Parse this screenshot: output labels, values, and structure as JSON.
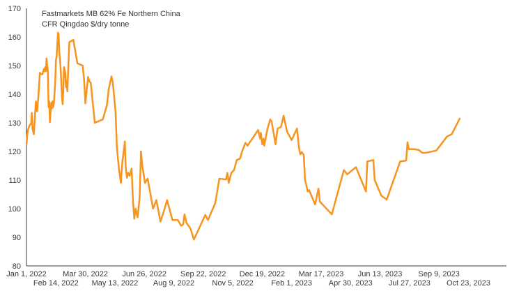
{
  "chart_data": {
    "type": "line",
    "title_lines": [
      "Fastmarkets MB 62% Fe Northern China",
      "CFR Qingdao $/dry tonne"
    ],
    "xlabel": "",
    "ylabel": "",
    "ylim": [
      80,
      170
    ],
    "y_ticks": [
      80,
      90,
      100,
      110,
      120,
      130,
      140,
      150,
      160,
      170
    ],
    "x_range": [
      "2022-01-01",
      "2023-11-30"
    ],
    "x_ticks": [
      {
        "date": "2022-01-01",
        "label": "Jan 1, 2022",
        "row": 1
      },
      {
        "date": "2022-02-14",
        "label": "Feb 14, 2022",
        "row": 2
      },
      {
        "date": "2022-03-30",
        "label": "Mar 30, 2022",
        "row": 1
      },
      {
        "date": "2022-05-13",
        "label": "May 13, 2022",
        "row": 2
      },
      {
        "date": "2022-06-26",
        "label": "Jun 26, 2022",
        "row": 1
      },
      {
        "date": "2022-08-09",
        "label": "Aug 9, 2022",
        "row": 2
      },
      {
        "date": "2022-09-22",
        "label": "Sep 22, 2022",
        "row": 1
      },
      {
        "date": "2022-11-05",
        "label": "Nov 5, 2022",
        "row": 2
      },
      {
        "date": "2022-12-19",
        "label": "Dec 19, 2022",
        "row": 1
      },
      {
        "date": "2023-02-01",
        "label": "Feb 1, 2023",
        "row": 2
      },
      {
        "date": "2023-03-17",
        "label": "Mar 17, 2023",
        "row": 1
      },
      {
        "date": "2023-04-30",
        "label": "Apr 30, 2023",
        "row": 2
      },
      {
        "date": "2023-06-13",
        "label": "Jun 13, 2023",
        "row": 1
      },
      {
        "date": "2023-07-27",
        "label": "Jul 27, 2023",
        "row": 2
      },
      {
        "date": "2023-09-09",
        "label": "Sep 9, 2023",
        "row": 1
      },
      {
        "date": "2023-10-23",
        "label": "Oct 23, 2023",
        "row": 2
      }
    ],
    "grid": false,
    "legend": "none",
    "series": [
      {
        "color": "#F7941D",
        "points": [
          [
            "2022-01-01",
            122.5
          ],
          [
            "2022-01-03",
            127.5
          ],
          [
            "2022-01-06",
            129.2
          ],
          [
            "2022-01-08",
            129.8
          ],
          [
            "2022-01-09",
            133.5
          ],
          [
            "2022-01-10",
            128.0
          ],
          [
            "2022-01-12",
            126.0
          ],
          [
            "2022-01-15",
            137.5
          ],
          [
            "2022-01-17",
            134.0
          ],
          [
            "2022-01-19",
            140.0
          ],
          [
            "2022-01-21",
            147.5
          ],
          [
            "2022-01-23",
            147.0
          ],
          [
            "2022-01-25",
            147.0
          ],
          [
            "2022-01-27",
            148.8
          ],
          [
            "2022-01-28",
            148.0
          ],
          [
            "2022-01-29",
            149.5
          ],
          [
            "2022-01-30",
            148.0
          ],
          [
            "2022-01-31",
            152.5
          ],
          [
            "2022-02-01",
            150.0
          ],
          [
            "2022-02-02",
            148.0
          ],
          [
            "2022-02-03",
            135.5
          ],
          [
            "2022-02-04",
            137.5
          ],
          [
            "2022-02-05",
            130.2
          ],
          [
            "2022-02-07",
            137.0
          ],
          [
            "2022-02-08",
            135.0
          ],
          [
            "2022-02-09",
            137.5
          ],
          [
            "2022-02-10",
            135.5
          ],
          [
            "2022-02-11",
            137.0
          ],
          [
            "2022-02-13",
            144.5
          ],
          [
            "2022-02-14",
            152.0
          ],
          [
            "2022-02-15",
            153.0
          ],
          [
            "2022-02-17",
            161.5
          ],
          [
            "2022-02-18",
            161.0
          ],
          [
            "2022-02-19",
            155.0
          ],
          [
            "2022-02-21",
            149.0
          ],
          [
            "2022-02-23",
            139.0
          ],
          [
            "2022-02-24",
            136.5
          ],
          [
            "2022-02-25",
            141.0
          ],
          [
            "2022-02-26",
            149.5
          ],
          [
            "2022-02-28",
            147.5
          ],
          [
            "2022-03-01",
            142.5
          ],
          [
            "2022-03-02",
            144.5
          ],
          [
            "2022-03-03",
            141.0
          ],
          [
            "2022-03-06",
            158.2
          ],
          [
            "2022-03-12",
            159.0
          ],
          [
            "2022-03-18",
            150.8
          ],
          [
            "2022-03-26",
            150.0
          ],
          [
            "2022-03-28",
            145.0
          ],
          [
            "2022-03-30",
            136.8
          ],
          [
            "2022-04-01",
            141.5
          ],
          [
            "2022-04-03",
            146.0
          ],
          [
            "2022-04-05",
            144.5
          ],
          [
            "2022-04-07",
            144.0
          ],
          [
            "2022-04-13",
            130.0
          ],
          [
            "2022-04-25",
            131.2
          ],
          [
            "2022-05-01",
            136.0
          ],
          [
            "2022-05-04",
            142.0
          ],
          [
            "2022-05-08",
            146.2
          ],
          [
            "2022-05-10",
            144.0
          ],
          [
            "2022-05-14",
            134.0
          ],
          [
            "2022-05-16",
            121.5
          ],
          [
            "2022-05-19",
            114.0
          ],
          [
            "2022-05-22",
            109.0
          ],
          [
            "2022-05-24",
            116.0
          ],
          [
            "2022-05-27",
            121.5
          ],
          [
            "2022-05-28",
            123.5
          ],
          [
            "2022-05-29",
            115.0
          ],
          [
            "2022-05-31",
            110.8
          ],
          [
            "2022-06-02",
            112.5
          ],
          [
            "2022-06-04",
            111.5
          ],
          [
            "2022-06-07",
            114.0
          ],
          [
            "2022-06-09",
            103.0
          ],
          [
            "2022-06-11",
            96.5
          ],
          [
            "2022-06-13",
            100.0
          ],
          [
            "2022-06-16",
            97.0
          ],
          [
            "2022-06-19",
            104.0
          ],
          [
            "2022-06-21",
            120.0
          ],
          [
            "2022-06-23",
            115.0
          ],
          [
            "2022-06-27",
            109.0
          ],
          [
            "2022-07-01",
            110.5
          ],
          [
            "2022-07-09",
            100.0
          ],
          [
            "2022-07-14",
            103.0
          ],
          [
            "2022-07-20",
            95.5
          ],
          [
            "2022-07-25",
            99.0
          ],
          [
            "2022-07-30",
            103.0
          ],
          [
            "2022-08-07",
            96.0
          ],
          [
            "2022-08-15",
            96.0
          ],
          [
            "2022-08-20",
            94.0
          ],
          [
            "2022-08-23",
            94.5
          ],
          [
            "2022-08-25",
            98.0
          ],
          [
            "2022-08-28",
            95.0
          ],
          [
            "2022-09-03",
            93.0
          ],
          [
            "2022-09-08",
            89.2
          ],
          [
            "2022-09-25",
            97.8
          ],
          [
            "2022-09-29",
            96.0
          ],
          [
            "2022-10-10",
            102.0
          ],
          [
            "2022-10-16",
            110.5
          ],
          [
            "2022-10-26",
            110.2
          ],
          [
            "2022-10-28",
            112.5
          ],
          [
            "2022-10-30",
            109.0
          ],
          [
            "2022-11-03",
            112.5
          ],
          [
            "2022-11-07",
            113.5
          ],
          [
            "2022-11-11",
            117.0
          ],
          [
            "2022-11-16",
            117.5
          ],
          [
            "2022-11-19",
            120.0
          ],
          [
            "2022-11-24",
            123.0
          ],
          [
            "2022-11-27",
            122.0
          ],
          [
            "2022-12-13",
            127.5
          ],
          [
            "2022-12-16",
            124.5
          ],
          [
            "2022-12-17",
            126.5
          ],
          [
            "2022-12-19",
            122.5
          ],
          [
            "2022-12-21",
            124.5
          ],
          [
            "2022-12-22",
            122.0
          ],
          [
            "2022-12-27",
            128.0
          ],
          [
            "2022-12-31",
            131.2
          ],
          [
            "2023-01-02",
            130.5
          ],
          [
            "2023-01-08",
            122.5
          ],
          [
            "2023-01-11",
            128.0
          ],
          [
            "2023-01-16",
            128.5
          ],
          [
            "2023-01-20",
            132.5
          ],
          [
            "2023-01-25",
            127.0
          ],
          [
            "2023-02-01",
            124.0
          ],
          [
            "2023-02-09",
            128.0
          ],
          [
            "2023-02-12",
            121.0
          ],
          [
            "2023-02-14",
            119.0
          ],
          [
            "2023-02-16",
            119.8
          ],
          [
            "2023-02-19",
            118.8
          ],
          [
            "2023-02-21",
            110.0
          ],
          [
            "2023-02-25",
            106.0
          ],
          [
            "2023-02-27",
            106.5
          ],
          [
            "2023-03-08",
            101.5
          ],
          [
            "2023-03-13",
            107.0
          ],
          [
            "2023-03-15",
            102.5
          ],
          [
            "2023-04-02",
            98.0
          ],
          [
            "2023-04-20",
            113.5
          ],
          [
            "2023-04-25",
            112.0
          ],
          [
            "2023-05-08",
            114.5
          ],
          [
            "2023-05-23",
            106.0
          ],
          [
            "2023-05-25",
            116.5
          ],
          [
            "2023-06-03",
            117.0
          ],
          [
            "2023-06-05",
            110.0
          ],
          [
            "2023-06-15",
            104.5
          ],
          [
            "2023-06-23",
            103.2
          ],
          [
            "2023-07-13",
            116.5
          ],
          [
            "2023-07-22",
            116.8
          ],
          [
            "2023-07-24",
            123.2
          ],
          [
            "2023-07-26",
            120.8
          ],
          [
            "2023-08-03",
            120.8
          ],
          [
            "2023-08-10",
            120.5
          ],
          [
            "2023-08-15",
            119.5
          ],
          [
            "2023-08-20",
            119.5
          ],
          [
            "2023-09-05",
            120.3
          ],
          [
            "2023-09-21",
            125.2
          ],
          [
            "2023-09-28",
            126.0
          ],
          [
            "2023-10-10",
            131.5
          ]
        ]
      }
    ]
  }
}
